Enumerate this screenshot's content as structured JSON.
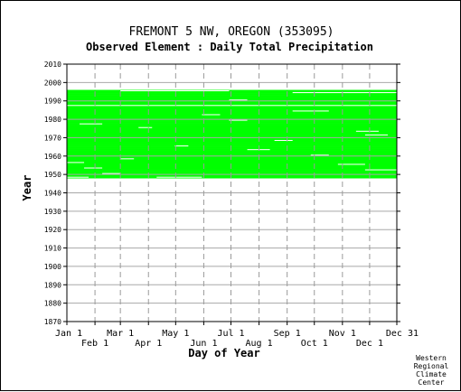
{
  "chart_data": {
    "type": "heatmap",
    "title": "FREMONT 5 NW, OREGON    (353095)",
    "subtitle": "Observed Element : Daily Total Precipitation",
    "xlabel": "Day of Year",
    "ylabel": "Year",
    "x_ticks_top": [
      "Jan 1",
      "Mar 1",
      "May 1",
      "Jul 1",
      "Sep 1",
      "Nov 1",
      "Dec 31"
    ],
    "x_ticks_bottom": [
      "Feb 1",
      "Apr 1",
      "Jun 1",
      "Aug 1",
      "Oct 1",
      "Dec 1"
    ],
    "x_tick_days": {
      "Jan 1": 1,
      "Feb 1": 32,
      "Mar 1": 60,
      "Apr 1": 91,
      "May 1": 121,
      "Jun 1": 152,
      "Jul 1": 182,
      "Aug 1": 213,
      "Sep 1": 244,
      "Oct 1": 274,
      "Nov 1": 305,
      "Dec 1": 335,
      "Dec 31": 365
    },
    "xlim": [
      1,
      365
    ],
    "ylim": [
      1870,
      2010
    ],
    "y_ticks": [
      1870,
      1880,
      1890,
      1900,
      1910,
      1920,
      1930,
      1940,
      1950,
      1960,
      1970,
      1980,
      1990,
      2000,
      2010
    ],
    "grid": true,
    "data_color": "#00ff00",
    "observed_period": {
      "start_year": 1948,
      "end_year": 1995
    },
    "gaps": [
      {
        "year": 1987,
        "day_start": 1,
        "day_end": 365
      },
      {
        "year": 1956,
        "day_start": 1,
        "day_end": 20
      },
      {
        "year": 1953,
        "day_start": 20,
        "day_end": 40
      },
      {
        "year": 1950,
        "day_start": 40,
        "day_end": 60
      },
      {
        "year": 1958,
        "day_start": 60,
        "day_end": 75
      },
      {
        "year": 1977,
        "day_start": 15,
        "day_end": 40
      },
      {
        "year": 1965,
        "day_start": 120,
        "day_end": 135
      },
      {
        "year": 1975,
        "day_start": 80,
        "day_end": 95
      },
      {
        "year": 1982,
        "day_start": 150,
        "day_end": 170
      },
      {
        "year": 1979,
        "day_start": 180,
        "day_end": 200
      },
      {
        "year": 1968,
        "day_start": 230,
        "day_end": 250
      },
      {
        "year": 1960,
        "day_start": 270,
        "day_end": 290
      },
      {
        "year": 1955,
        "day_start": 300,
        "day_end": 330
      },
      {
        "year": 1973,
        "day_start": 320,
        "day_end": 345
      },
      {
        "year": 1984,
        "day_start": 250,
        "day_end": 290
      },
      {
        "year": 1963,
        "day_start": 200,
        "day_end": 225
      },
      {
        "year": 1971,
        "day_start": 330,
        "day_end": 355
      },
      {
        "year": 1990,
        "day_start": 180,
        "day_end": 200
      },
      {
        "year": 1952,
        "day_start": 330,
        "day_end": 365
      }
    ],
    "edge_trims": [
      {
        "year": 1995,
        "day_start": 60,
        "day_end": 180
      },
      {
        "year": 1994,
        "day_start": 250,
        "day_end": 365
      },
      {
        "year": 1948,
        "day_start": 1,
        "day_end": 25
      },
      {
        "year": 1948,
        "day_start": 100,
        "day_end": 150
      }
    ]
  },
  "credit": [
    "Western",
    "Regional",
    "Climate",
    "Center"
  ]
}
